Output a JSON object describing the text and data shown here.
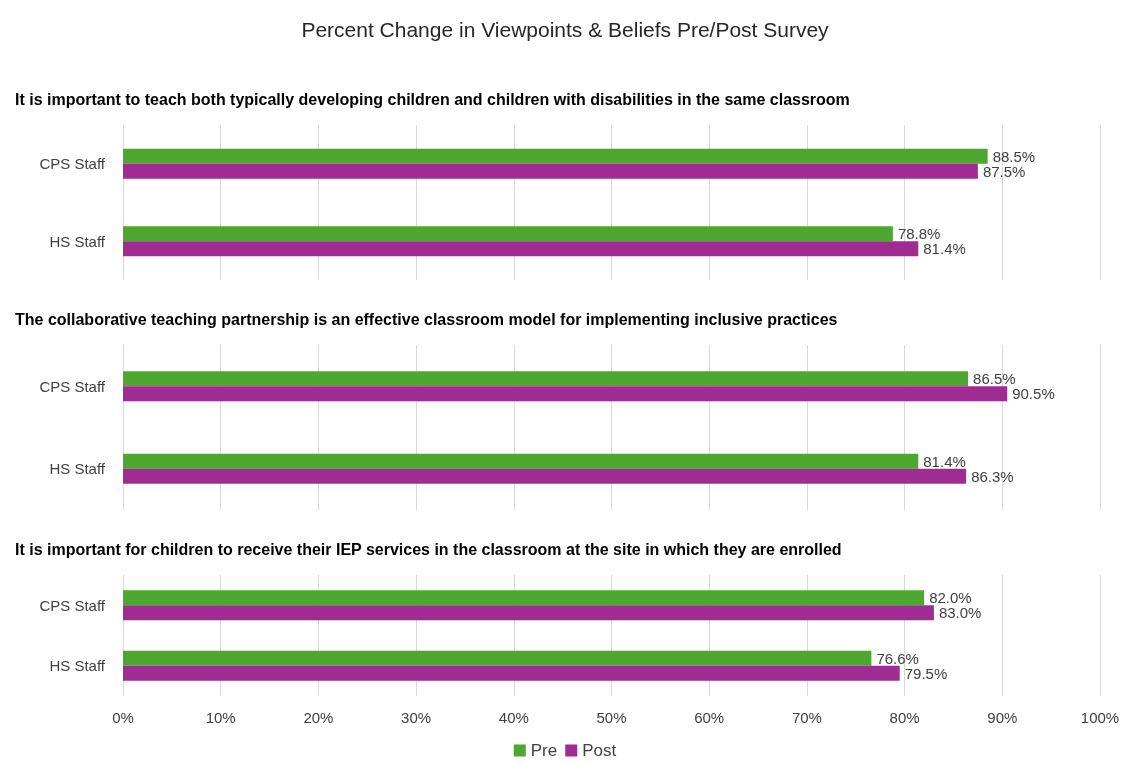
{
  "chart_data": [
    {
      "type": "bar",
      "title": "Percent Change in Viewpoints & Beliefs Pre/Post Survey",
      "subtitle": "It is important to teach both typically developing children and children with disabilities in the same classroom",
      "orientation": "horizontal",
      "categories": [
        "CPS Staff",
        "HS Staff"
      ],
      "series": [
        {
          "color": "#4ea72e",
          "values": [
            88.5,
            78.8
          ],
          "value_labels": [
            "88.5%",
            "78.8%"
          ]
        },
        {
          "color": "#a02b93",
          "values": [
            87.5,
            81.4
          ],
          "value_labels": [
            "87.5%",
            "81.4%"
          ]
        }
      ],
      "xlim": [
        0,
        100
      ],
      "xticks": [
        0,
        10,
        20,
        30,
        40,
        50,
        60,
        70,
        80,
        90,
        100
      ],
      "grid": "x",
      "tick_labels": "y"
    },
    {
      "type": "bar",
      "subtitle": "The collaborative teaching partnership is an effective classroom model for implementing inclusive practices",
      "orientation": "horizontal",
      "categories": [
        "CPS Staff",
        "HS Staff"
      ],
      "series": [
        {
          "color": "#4ea72e",
          "values": [
            86.5,
            81.4
          ],
          "value_labels": [
            "86.5%",
            "81.4%"
          ]
        },
        {
          "color": "#a02b93",
          "values": [
            90.5,
            86.3
          ],
          "value_labels": [
            "90.5%",
            "86.3%"
          ]
        }
      ],
      "xlim": [
        0,
        100
      ],
      "xticks": [
        0,
        10,
        20,
        30,
        40,
        50,
        60,
        70,
        80,
        90,
        100
      ],
      "grid": "x",
      "tick_labels": "y"
    },
    {
      "type": "bar",
      "subtitle": "It is important for children to receive their IEP services in the classroom at the site in which they are enrolled",
      "orientation": "horizontal",
      "categories": [
        "CPS Staff",
        "HS Staff"
      ],
      "series": [
        {
          "name": "Pre",
          "color": "#4ea72e",
          "values": [
            82.0,
            76.6
          ],
          "value_labels": [
            "82.0%",
            "76.6%"
          ]
        },
        {
          "name": "Post",
          "color": "#a02b93",
          "values": [
            83.0,
            79.5
          ],
          "value_labels": [
            "83.0%",
            "79.5%"
          ]
        }
      ],
      "xlim": [
        0,
        100
      ],
      "xticks": [
        {
          "value": 0,
          "label": "0%"
        },
        {
          "value": 10,
          "label": "10%"
        },
        {
          "value": 20,
          "label": "20%"
        },
        {
          "value": 30,
          "label": "30%"
        },
        {
          "value": 40,
          "label": "40%"
        },
        {
          "value": 50,
          "label": "50%"
        },
        {
          "value": 60,
          "label": "60%"
        },
        {
          "value": 70,
          "label": "70%"
        },
        {
          "value": 80,
          "label": "80%"
        },
        {
          "value": 90,
          "label": "90%"
        },
        {
          "value": 100,
          "label": "100%"
        }
      ],
      "grid": "x",
      "legend": "bottom"
    }
  ]
}
